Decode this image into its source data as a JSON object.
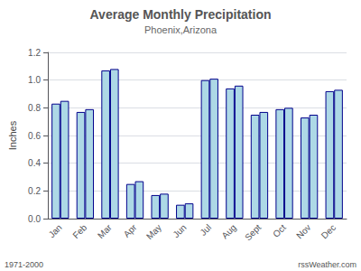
{
  "chart_data": {
    "type": "bar",
    "title": "Average Monthly Precipitation",
    "subtitle": "Phoenix,Arizona",
    "ylabel": "Inches",
    "annotations": [
      "1971-2000",
      "rssWeather.com"
    ],
    "categories": [
      "Jan",
      "Feb",
      "Mar",
      "Apr",
      "May",
      "Jun",
      "Jul",
      "Aug",
      "Sept",
      "Oct",
      "Nov",
      "Dec"
    ],
    "series": [
      {
        "color": "#ADD8E6",
        "values": [
          0.83,
          0.77,
          1.07,
          0.25,
          0.17,
          0.1,
          1.0,
          0.94,
          0.75,
          0.79,
          0.73,
          0.92
        ]
      },
      {
        "color": "#ADD8E6",
        "values": [
          0.85,
          0.79,
          1.08,
          0.27,
          0.18,
          0.11,
          1.01,
          0.96,
          0.77,
          0.8,
          0.75,
          0.93
        ]
      }
    ],
    "ylim": [
      0.0,
      1.2
    ],
    "yticks": [
      {
        "value": 0.0,
        "label": "0.0"
      },
      0.2,
      0.4,
      0.6,
      0.8,
      {
        "value": 1.0,
        "label": "1.0"
      },
      1.2
    ],
    "grid": true
  }
}
